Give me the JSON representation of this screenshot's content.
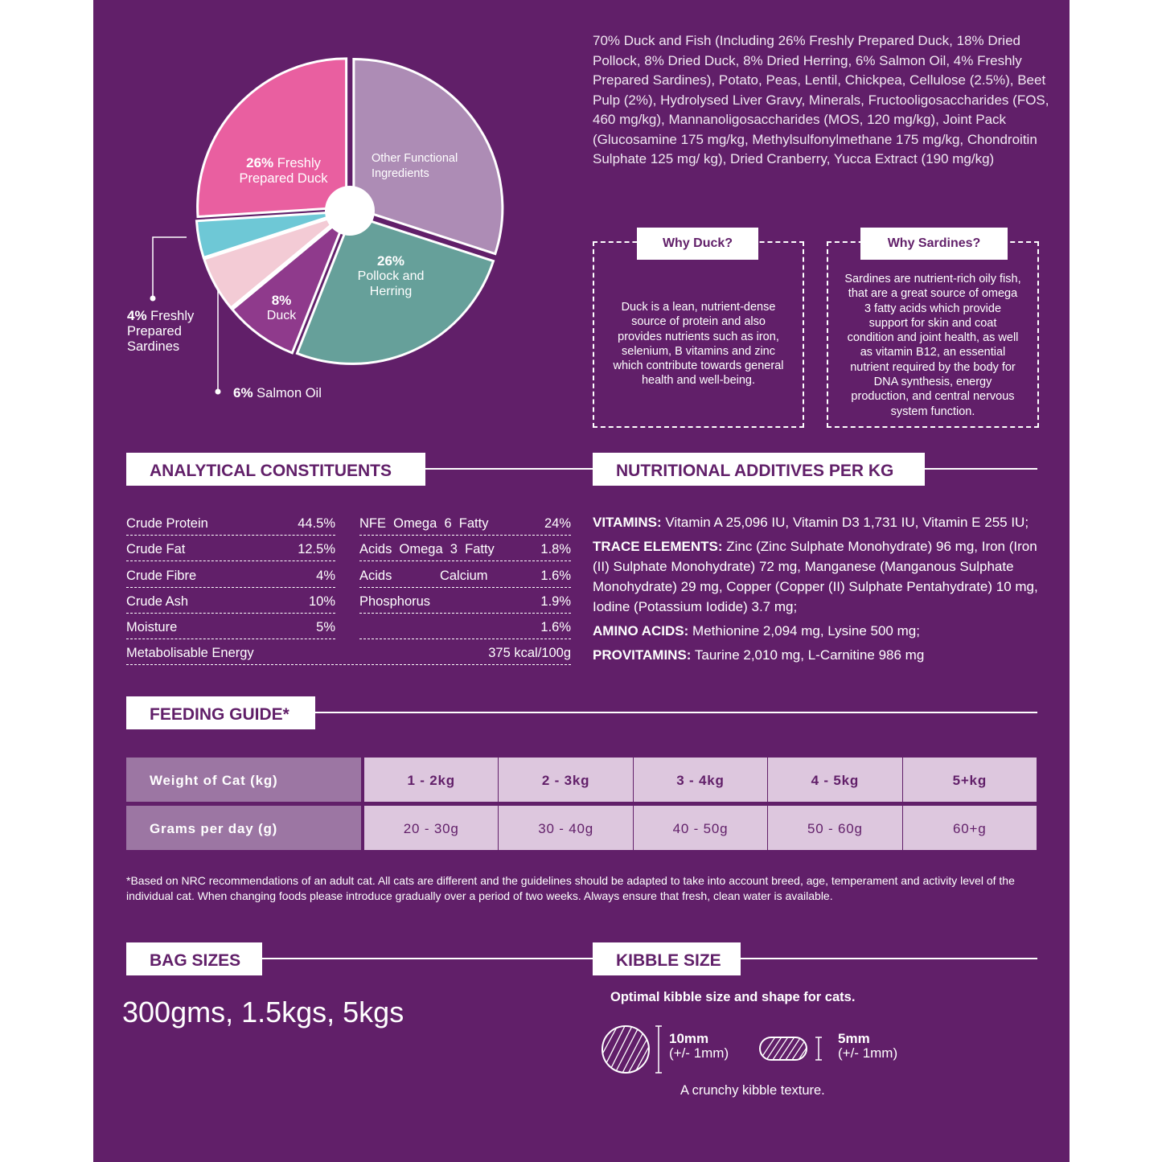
{
  "chart_data": {
    "type": "pie",
    "categories": [
      "Other Functional Ingredients",
      "Pollock and Herring",
      "Duck",
      "Salmon Oil",
      "Freshly Prepared Sardines",
      "Freshly Prepared Duck"
    ],
    "values": [
      30,
      26,
      8,
      6,
      4,
      26
    ],
    "value_labels": [
      null,
      "26%",
      "8%",
      "6%",
      "4%",
      "26%"
    ],
    "colors": [
      "#ad8cb5",
      "#66a09a",
      "#8f3a8c",
      "#f3cbd5",
      "#6ec8d6",
      "#e95fa0"
    ]
  },
  "ingredients": "70% Duck and Fish (Including 26% Freshly Prepared Duck, 18% Dried Pollock, 8% Dried Duck, 8% Dried Herring, 6% Salmon Oil, 4% Freshly Prepared Sardines), Potato, Peas, Lentil, Chickpea, Cellulose (2.5%), Beet Pulp (2%), Hydrolysed Liver Gravy, Minerals, Fructooligosaccharides (FOS, 460 mg/kg), Mannanoligosaccharides (MOS, 120 mg/kg), Joint Pack (Glucosamine 175 mg/kg, Methylsulfonylmethane 175 mg/kg, Chondroitin Sulphate 125 mg/ kg), Dried Cranberry, Yucca Extract (190 mg/kg)",
  "why_boxes": [
    {
      "title": "Why Duck?",
      "text": "Duck is a lean, nutrient-dense source of protein and also provides nutrients such as iron, selenium, B vitamins and zinc which contribute towards general health and well-being."
    },
    {
      "title": "Why Sardines?",
      "text": "Sardines are nutrient-rich oily fish, that are a great source of omega 3 fatty acids which provide support for skin and coat condition and joint health, as well as vitamin B12, an essential nutrient required by the body for DNA synthesis, energy production, and central nervous system function."
    }
  ],
  "analytical": {
    "title": "ANALYTICAL CONSTITUENTS",
    "left": [
      {
        "label": "Crude Protein",
        "value": "44.5%"
      },
      {
        "label": "Crude Fat",
        "value": "12.5%"
      },
      {
        "label": "Crude Fibre",
        "value": "4%"
      },
      {
        "label": "Crude Ash",
        "value": "10%"
      },
      {
        "label": "Moisture",
        "value": "5%"
      }
    ],
    "right": [
      {
        "label": "NFE  Omega  6  Fatty",
        "value": "24%"
      },
      {
        "label": "Acids  Omega  3  Fatty",
        "value": "1.8%"
      },
      {
        "label": "Acids             Calcium",
        "value": "1.6%"
      },
      {
        "label": "Phosphorus",
        "value": "1.9%"
      },
      {
        "value": "1.6%"
      }
    ],
    "energy": {
      "label": "Metabolisable Energy",
      "value": "375 kcal/100g"
    }
  },
  "additives": {
    "title": "NUTRITIONAL ADDITIVES PER KG",
    "items": [
      {
        "label": "VITAMINS:",
        "text": "Vitamin A 25,096 IU, Vitamin D3 1,731 IU, Vitamin E 255 IU;"
      },
      {
        "label": "TRACE ELEMENTS:",
        "text": "Zinc (Zinc Sulphate Monohydrate) 96 mg, Iron (Iron (II) Sulphate Monohydrate) 72 mg, Manganese (Manganous Sulphate Monohydrate) 29 mg, Copper (Copper (II) Sulphate Pentahydrate) 10 mg, Iodine (Potassium Iodide) 3.7 mg;"
      },
      {
        "label": "AMINO ACIDS:",
        "text": "Methionine 2,094 mg, Lysine 500 mg;"
      },
      {
        "label": "PROVITAMINS:",
        "text": "Taurine 2,010 mg, L-Carnitine 986 mg"
      }
    ]
  },
  "feeding": {
    "title": "FEEDING GUIDE*",
    "rows": [
      [
        "Weight of Cat (kg)",
        "1 - 2kg",
        "2 - 3kg",
        "3 - 4kg",
        "4 - 5kg",
        "5+kg"
      ],
      [
        "Grams per day (g)",
        "20 - 30g",
        "30 - 40g",
        "40 - 50g",
        "50 - 60g",
        "60+g"
      ]
    ],
    "footnote": "*Based on NRC recommendations of an adult cat. All cats are different and the guidelines should be adapted to take into account breed, age, temperament and activity level of the individual cat. When changing foods please introduce gradually over a period of two weeks. Always ensure that fresh, clean water is available."
  },
  "bags": {
    "title": "BAG SIZES",
    "text": "300gms, 1.5kgs, 5kgs"
  },
  "kibble": {
    "title": "KIBBLE SIZE",
    "subtitle": "Optimal kibble size and shape for cats.",
    "sizes": [
      {
        "size": "10mm",
        "tolerance": "(+/- 1mm)"
      },
      {
        "size": "5mm",
        "tolerance": "(+/- 1mm)"
      }
    ],
    "note": "A crunchy kibble texture."
  }
}
